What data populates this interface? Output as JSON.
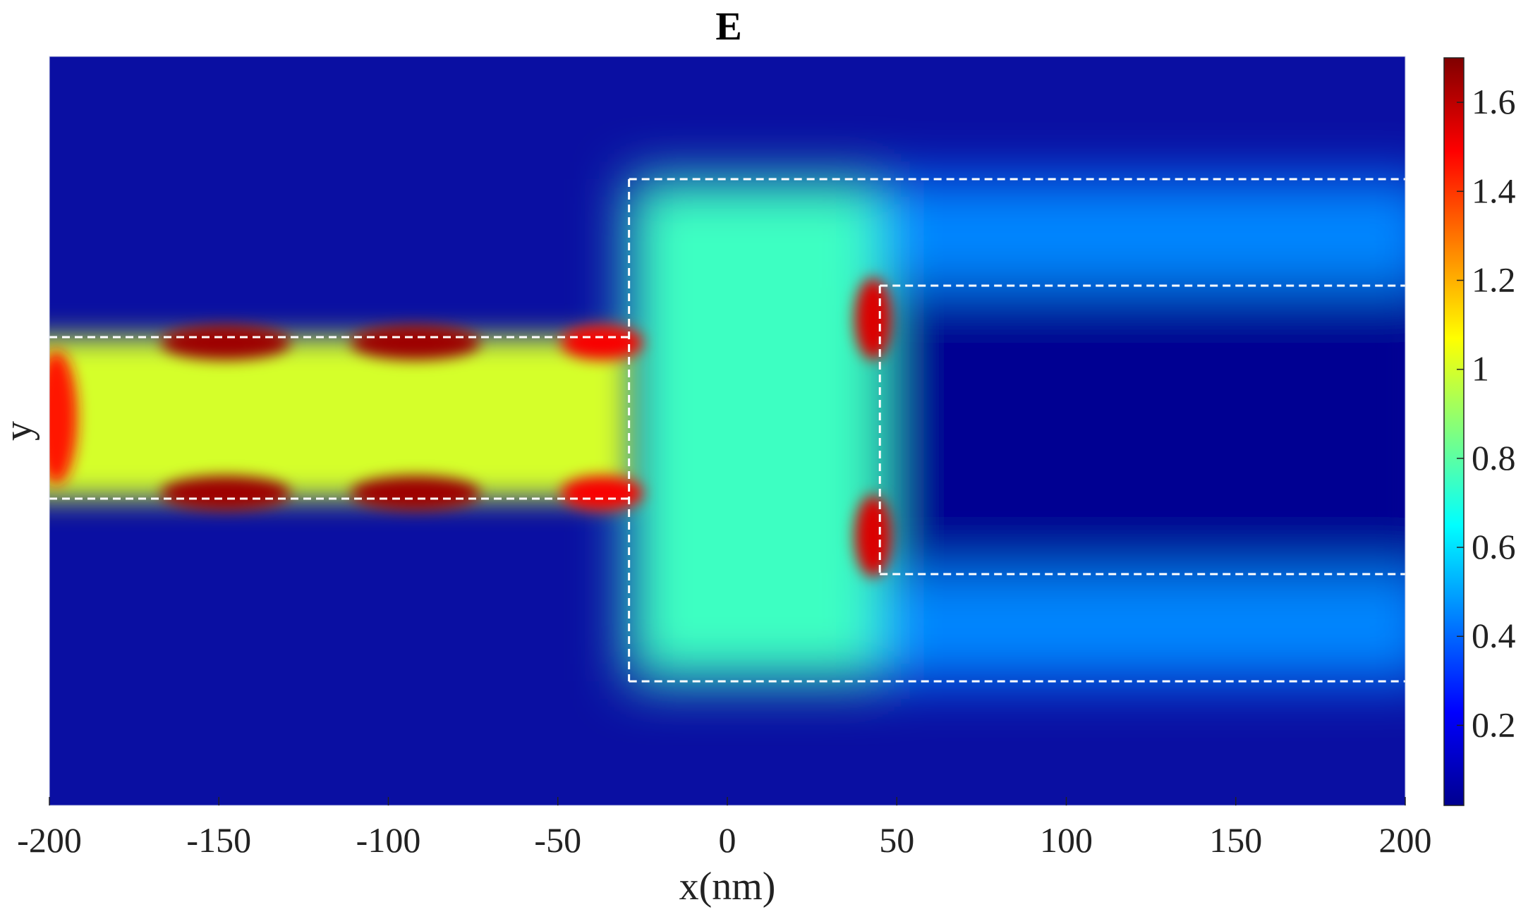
{
  "chart_data": {
    "type": "heatmap",
    "title": "E",
    "xlabel": "x(nm)",
    "ylabel": "y",
    "xlim": [
      -200,
      200
    ],
    "xticks": [
      -200,
      -150,
      -100,
      -50,
      0,
      50,
      100,
      150,
      200
    ],
    "xtick_labels": [
      "-200",
      "-150",
      "-100",
      "-50",
      "0",
      "50",
      "100",
      "150",
      "200"
    ],
    "colorbar": {
      "colormap": "jet",
      "range": [
        0.02,
        1.7
      ],
      "ticks": [
        0.2,
        0.4,
        0.6,
        0.8,
        1,
        1.2,
        1.4,
        1.6
      ],
      "tick_labels": [
        "0.2",
        "0.4",
        "0.6",
        "0.8",
        "1",
        "1.2",
        "1.4",
        "1.6"
      ]
    },
    "background_level": 0.05,
    "field_regions": [
      {
        "name": "input-waveguide-core",
        "x_range": [
          -200,
          -29
        ],
        "level": 1.0
      },
      {
        "name": "taper-region",
        "x_range": [
          -29,
          45
        ],
        "level": 0.75
      },
      {
        "name": "upper-output-arm",
        "x_range": [
          45,
          200
        ],
        "level": 0.45
      },
      {
        "name": "lower-output-arm",
        "x_range": [
          45,
          200
        ],
        "level": 0.45
      },
      {
        "name": "central-gap",
        "x_range": [
          45,
          200
        ],
        "level": 0.05
      }
    ],
    "hotspots": [
      {
        "x": -198,
        "level": 1.45
      },
      {
        "x": -148,
        "level": 1.65
      },
      {
        "x": -92,
        "level": 1.65
      },
      {
        "x": -37,
        "level": 1.5
      },
      {
        "x": 43,
        "level": 1.55
      }
    ],
    "boundary_style": "white dashed",
    "grid": false
  }
}
